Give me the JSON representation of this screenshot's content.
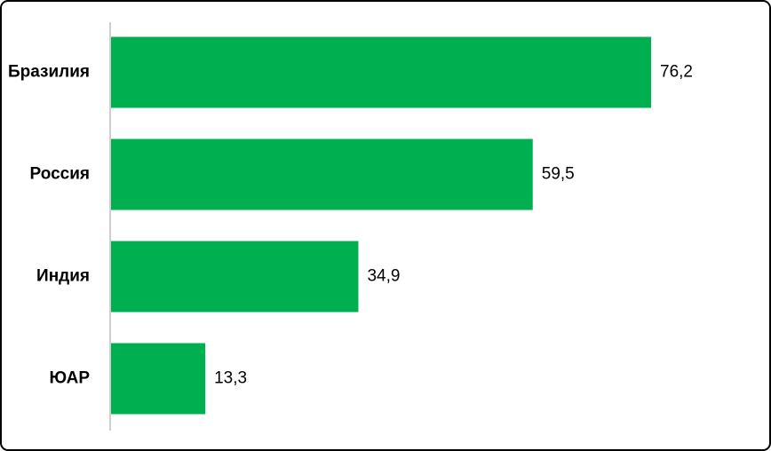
{
  "chart_data": {
    "type": "bar",
    "orientation": "horizontal",
    "categories": [
      "Бразилия",
      "Россия",
      "Индия",
      "ЮАР"
    ],
    "values": [
      76.2,
      59.5,
      34.9,
      13.3
    ],
    "value_labels": [
      "76,2",
      "59,5",
      "34,9",
      "13,3"
    ],
    "color": "#00b050"
  }
}
